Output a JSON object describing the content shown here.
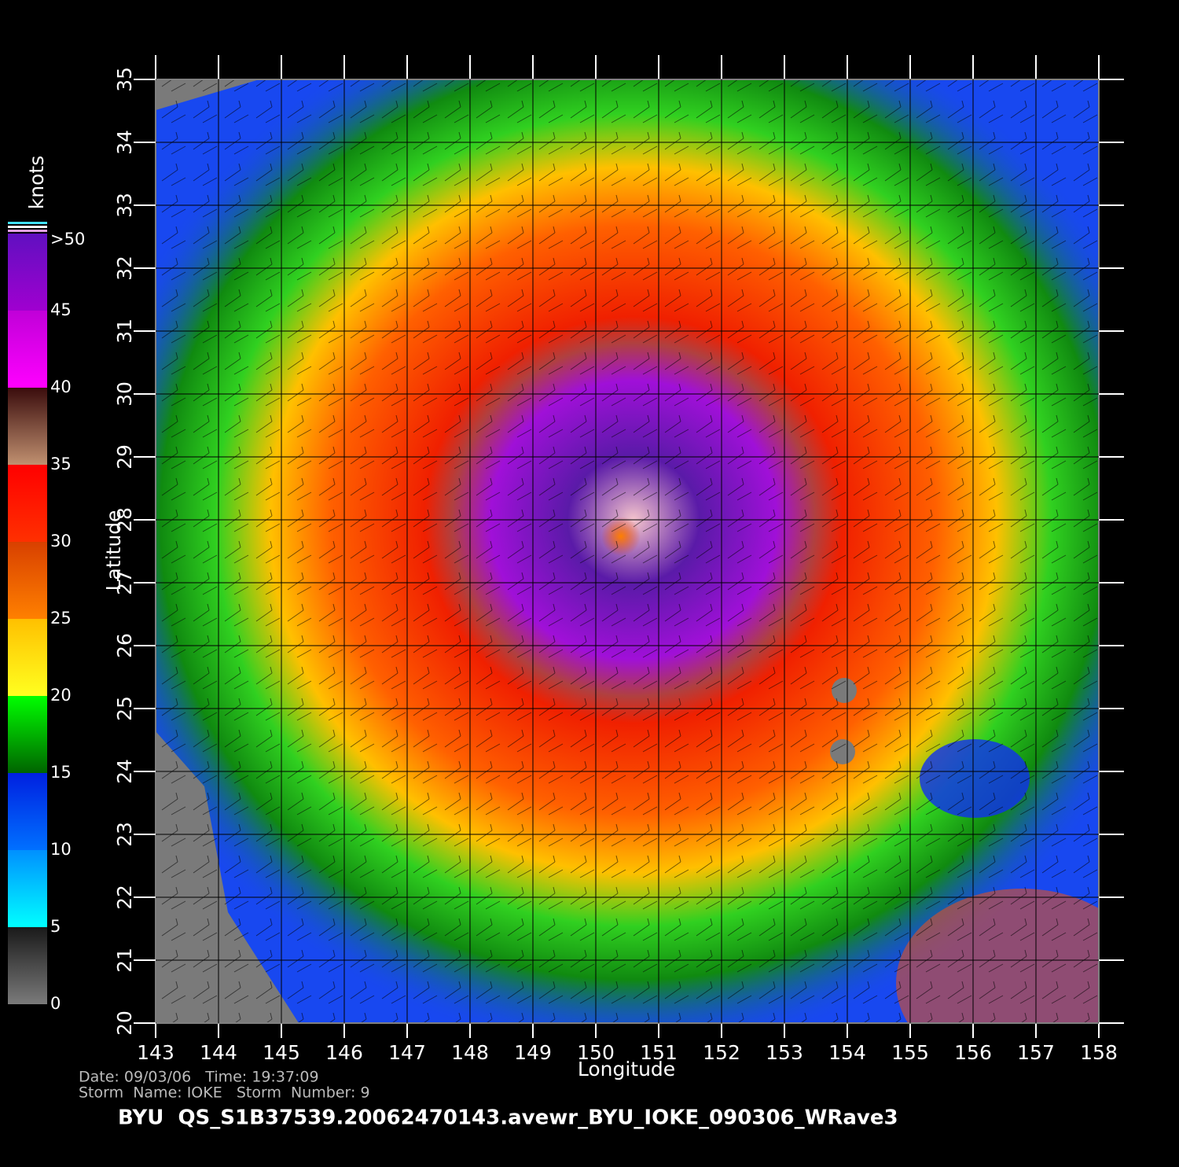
{
  "chart_data": {
    "type": "map",
    "xlabel": "Longitude",
    "ylabel": "Latitude",
    "xlim": [
      143,
      158
    ],
    "ylim": [
      20,
      35
    ],
    "xticks": [
      143,
      144,
      145,
      146,
      147,
      148,
      149,
      150,
      151,
      152,
      153,
      154,
      155,
      156,
      157,
      158
    ],
    "yticks": [
      20,
      21,
      22,
      23,
      24,
      25,
      26,
      27,
      28,
      29,
      30,
      31,
      32,
      33,
      34,
      35
    ],
    "grid": true,
    "colorbar": {
      "label": "knots",
      "lim": [
        0,
        50
      ],
      "ticks": [
        0,
        5,
        10,
        15,
        20,
        25,
        30,
        35,
        40,
        45,
        {
          "value": 50,
          "label": ">50"
        }
      ],
      "colors": [
        [
          "#7a7a7a",
          "#1a1a1a"
        ],
        [
          "#00ffff",
          "#0090ff"
        ],
        [
          "#0070ff",
          "#0020e0"
        ],
        [
          "#006400",
          "#00ff00"
        ],
        [
          "#ffff20",
          "#ffc000"
        ],
        [
          "#ff8000",
          "#d84000"
        ],
        [
          "#ff3000",
          "#ff0000"
        ],
        [
          "#c09070",
          "#3a0c0c"
        ],
        [
          "#ff00ff",
          "#c000d8"
        ],
        [
          "#a000d0",
          "#6010c0"
        ]
      ]
    },
    "annotations": [
      "Date: 09/03/06   Time: 19:37:09",
      "Storm  Name: IOKE   Storm  Number: 9",
      "BYU  QS_S1B37539.20062470143.avewr_BYU_IOKE_090306_WRave3"
    ]
  }
}
